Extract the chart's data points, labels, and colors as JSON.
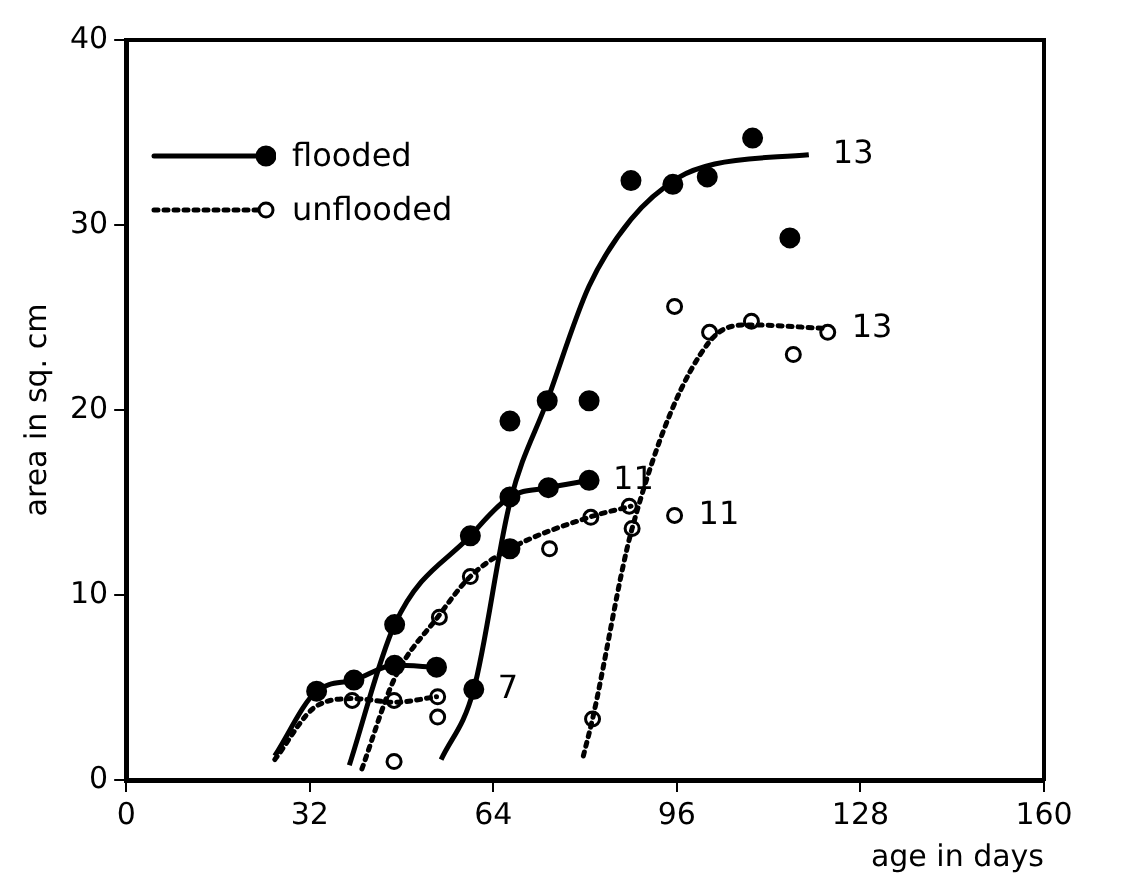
{
  "chart_data": {
    "type": "line",
    "xlabel": "age in days",
    "ylabel": "area in sq. cm",
    "xlim": [
      0,
      160
    ],
    "xticks": [
      0,
      32,
      64,
      96,
      128,
      160
    ],
    "ylim": [
      0,
      40
    ],
    "yticks": [
      0,
      10,
      20,
      30,
      40
    ],
    "grid": false,
    "legend": "top left",
    "series": [
      {
        "type": "line",
        "color": "#000000",
        "line_style": "solid",
        "marker": "none",
        "x": [
          25.9,
          33.2,
          39.7,
          46.8,
          54.1
        ],
        "values": [
          1.3,
          4.8,
          5.4,
          6.2,
          6.1
        ]
      },
      {
        "type": "line",
        "color": "#000000",
        "line_style": "solid",
        "marker": "none",
        "x": [
          38.9,
          46.8,
          60,
          66.9,
          73.6,
          80.7
        ],
        "values": [
          0.8,
          8.4,
          13.2,
          15.3,
          15.8,
          16.2
        ]
      },
      {
        "type": "line",
        "color": "#000000",
        "line_style": "solid",
        "marker": "none",
        "x": [
          54.9,
          60.6,
          66.9,
          73.4,
          80.7,
          88,
          96.5,
          102.6,
          119
        ],
        "values": [
          1.1,
          4.9,
          15,
          20.5,
          26.7,
          30.3,
          32.6,
          33.3,
          33.8
        ]
      },
      {
        "type": "line",
        "color": "#000000",
        "line_style": "dotted",
        "marker": "none",
        "x": [
          25.9,
          33.2,
          39.7,
          46.8,
          54.1
        ],
        "values": [
          1.1,
          4,
          4.4,
          4.2,
          4.5
        ]
      },
      {
        "type": "line",
        "color": "#000000",
        "line_style": "dotted",
        "marker": "none",
        "x": [
          41.1,
          46.8,
          54.3,
          60,
          66.9,
          80.7,
          88
        ],
        "values": [
          0.6,
          5.5,
          8.8,
          11,
          12.5,
          14.2,
          14.8
        ]
      },
      {
        "type": "line",
        "color": "#000000",
        "line_style": "dotted",
        "marker": "none",
        "x": [
          79.7,
          81.3,
          88.2,
          101.7,
          108.6,
          122.3
        ],
        "values": [
          1.3,
          3.3,
          13.6,
          23.7,
          24.6,
          24.4
        ]
      },
      {
        "type": "scatter",
        "name": "flooded",
        "color": "#000000",
        "marker": "circle",
        "line_style": "solid",
        "x": [
          33.2,
          39.7,
          46.8,
          54.1,
          46.8,
          60,
          66.9,
          73.6,
          80.7,
          60.6,
          66.9,
          73.4,
          80.7,
          88,
          95.3,
          101.3,
          109.2,
          115.7,
          66.9
        ],
        "values": [
          4.8,
          5.4,
          6.2,
          6.1,
          8.4,
          13.2,
          15.3,
          15.8,
          16.2,
          4.9,
          19.4,
          20.5,
          20.5,
          32.4,
          32.2,
          32.6,
          34.7,
          29.3,
          12.5
        ]
      },
      {
        "type": "scatter",
        "name": "unflooded",
        "color": "#000000",
        "marker": "circle-open",
        "line_style": "dotted",
        "x": [
          39.4,
          46.7,
          54.3,
          54.3,
          46.7,
          54.6,
          60,
          73.8,
          81,
          87.7,
          88.2,
          95.6,
          95.6,
          101.7,
          109,
          116.3,
          122.3,
          81.3
        ],
        "values": [
          4.3,
          4.3,
          4.5,
          3.4,
          1,
          8.8,
          11,
          12.5,
          14.2,
          14.8,
          13.6,
          14.3,
          25.6,
          24.2,
          24.8,
          23,
          24.2,
          3.3
        ]
      }
    ],
    "annotations": [
      {
        "text": "7",
        "x": 60.6,
        "y": 4.9
      },
      {
        "text": "11",
        "x": 80.7,
        "y": 16.2
      },
      {
        "text": "11",
        "x": 95.6,
        "y": 14.3
      },
      {
        "text": "13",
        "x": 119,
        "y": 33.8
      },
      {
        "text": "13",
        "x": 122.3,
        "y": 24.4
      }
    ]
  }
}
